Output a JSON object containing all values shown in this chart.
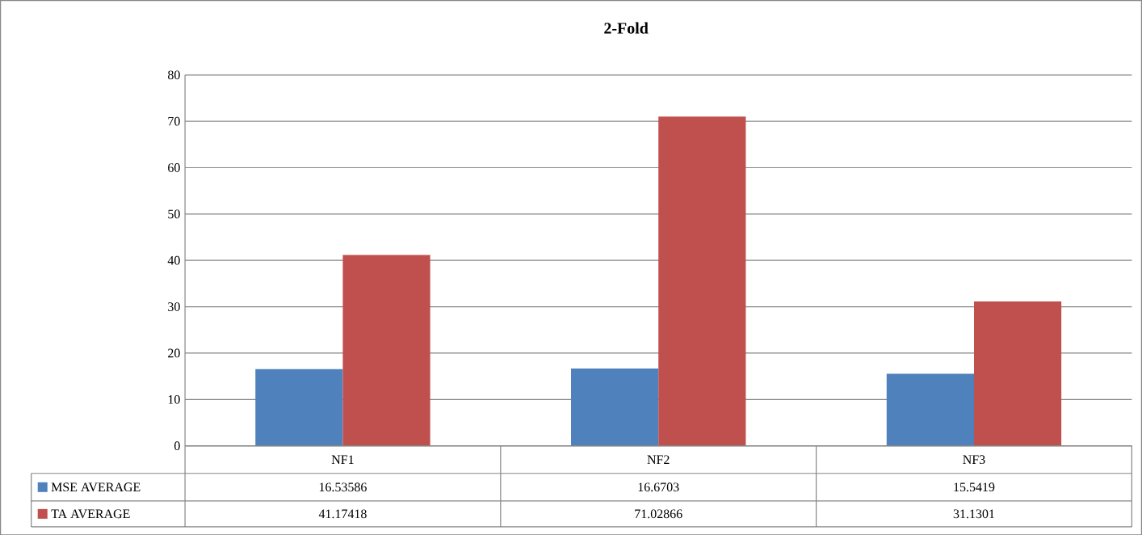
{
  "chart_data": {
    "type": "bar",
    "title": "2-Fold",
    "categories": [
      "NF1",
      "NF2",
      "NF3"
    ],
    "series": [
      {
        "name": "MSE AVERAGE",
        "color": "#4f81bd",
        "values": [
          16.53586,
          16.6703,
          15.5419
        ]
      },
      {
        "name": "TA AVERAGE",
        "color": "#c0504d",
        "values": [
          41.17418,
          71.02866,
          31.1301
        ]
      }
    ],
    "ylim": [
      0,
      80
    ],
    "yticks": [
      0,
      10,
      20,
      30,
      40,
      50,
      60,
      70,
      80
    ],
    "grid": "y",
    "legend": "bottom",
    "data_labels": true
  }
}
